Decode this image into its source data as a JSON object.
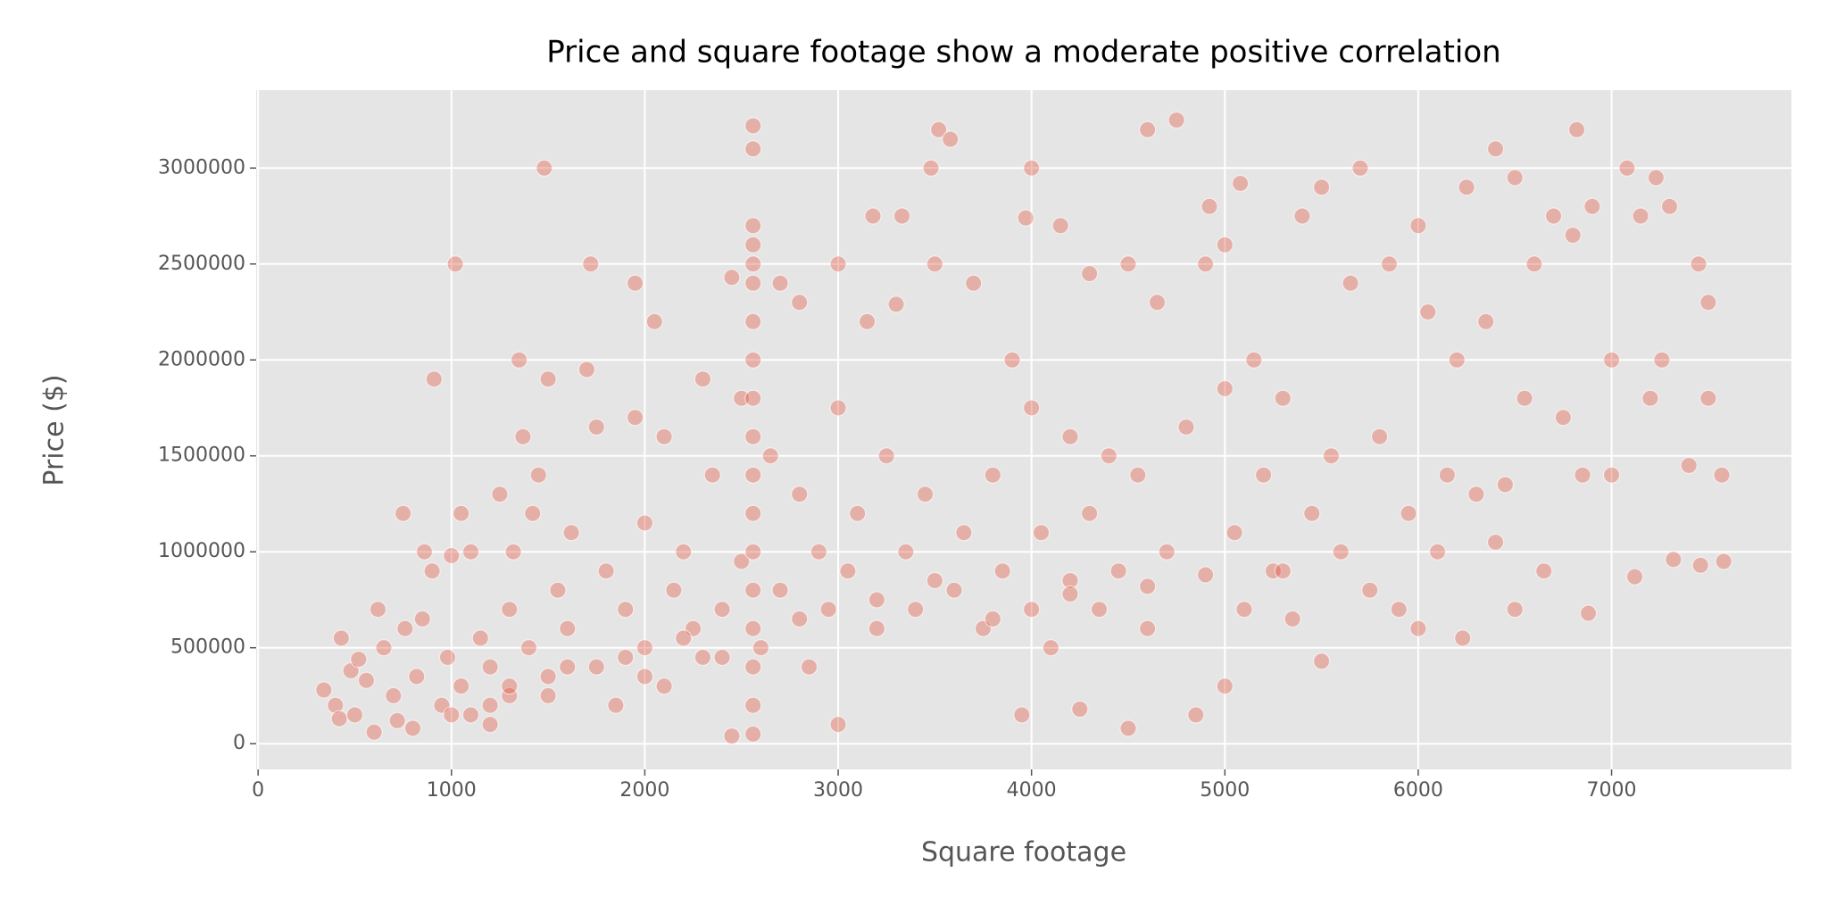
{
  "chart_data": {
    "type": "scatter",
    "title": "Price and square footage show a moderate positive correlation",
    "xlabel": "Square footage",
    "ylabel": "Price ($)",
    "color": "#E24A33",
    "grid": true,
    "xlim": [
      -10,
      7930
    ],
    "ylim": [
      -134000,
      3406000
    ],
    "xticks": [
      0,
      1000,
      2000,
      3000,
      4000,
      5000,
      6000,
      7000
    ],
    "yticks": [
      0,
      500000,
      1000000,
      1500000,
      2000000,
      2500000,
      3000000
    ],
    "x": [
      340,
      400,
      420,
      430,
      480,
      500,
      520,
      560,
      600,
      620,
      650,
      700,
      720,
      750,
      760,
      800,
      820,
      850,
      860,
      900,
      910,
      950,
      980,
      1000,
      1020,
      1050,
      1050,
      1100,
      1100,
      1150,
      1200,
      1200,
      1250,
      1300,
      1300,
      1320,
      1350,
      1370,
      1400,
      1420,
      1450,
      1480,
      1500,
      1500,
      1550,
      1600,
      1620,
      1700,
      1720,
      1750,
      1750,
      1800,
      1850,
      1900,
      1950,
      1950,
      2000,
      2000,
      2050,
      2100,
      2100,
      2150,
      2200,
      2250,
      2300,
      2300,
      2350,
      2400,
      2450,
      2450,
      2500,
      2500,
      2560,
      2560,
      2560,
      2560,
      2560,
      2560,
      2560,
      2560,
      2560,
      2560,
      2560,
      2560,
      2560,
      2560,
      2560,
      2560,
      2560,
      2560,
      2600,
      2650,
      2700,
      2700,
      2800,
      2800,
      2850,
      2900,
      2950,
      3000,
      3000,
      3000,
      3050,
      3100,
      3150,
      3180,
      3200,
      3250,
      3300,
      3330,
      3350,
      3400,
      3450,
      3480,
      3500,
      3520,
      3580,
      3600,
      3650,
      3700,
      3750,
      3800,
      3850,
      3900,
      3950,
      3970,
      4000,
      4000,
      4000,
      4050,
      4100,
      4150,
      4200,
      4200,
      4250,
      4300,
      4300,
      4350,
      4400,
      4450,
      4500,
      4500,
      4550,
      4600,
      4600,
      4650,
      4700,
      4750,
      4800,
      4850,
      4900,
      4920,
      5000,
      5000,
      5000,
      5050,
      5080,
      5100,
      5150,
      5200,
      5250,
      5300,
      5350,
      5400,
      5450,
      5500,
      5500,
      5550,
      5600,
      5650,
      5700,
      5750,
      5800,
      5850,
      5900,
      5950,
      6000,
      6000,
      6050,
      6100,
      6150,
      6200,
      6230,
      6250,
      6300,
      6350,
      6400,
      6400,
      6450,
      6500,
      6500,
      6550,
      6600,
      6650,
      6700,
      6750,
      6800,
      6820,
      6850,
      6880,
      6900,
      7000,
      7000,
      7080,
      7120,
      7150,
      7200,
      7230,
      7260,
      7300,
      7320,
      7400,
      7450,
      7460,
      7500,
      7500,
      7570,
      7580,
      3200,
      3500,
      3800,
      4200,
      4600,
      4900,
      5300,
      1300,
      1600,
      1900,
      2200,
      2800,
      1000,
      1200,
      1500,
      2000,
      2400
    ],
    "values": [
      280000,
      200000,
      130000,
      550000,
      380000,
      150000,
      440000,
      330000,
      60000,
      700000,
      500000,
      250000,
      120000,
      1200000,
      600000,
      80000,
      350000,
      650000,
      1000000,
      900000,
      1900000,
      200000,
      450000,
      980000,
      2500000,
      1200000,
      300000,
      1000000,
      150000,
      550000,
      400000,
      100000,
      1300000,
      700000,
      250000,
      1000000,
      2000000,
      1600000,
      500000,
      1200000,
      1400000,
      3000000,
      1900000,
      350000,
      800000,
      600000,
      1100000,
      1950000,
      2500000,
      1650000,
      400000,
      900000,
      200000,
      700000,
      2400000,
      1700000,
      1150000,
      500000,
      2200000,
      1600000,
      300000,
      800000,
      1000000,
      600000,
      1900000,
      450000,
      1400000,
      700000,
      2430000,
      40000,
      1800000,
      950000,
      50000,
      200000,
      400000,
      600000,
      800000,
      1000000,
      1200000,
      1400000,
      1600000,
      1800000,
      2000000,
      2200000,
      2400000,
      2500000,
      2600000,
      2700000,
      3100000,
      3220000,
      500000,
      1500000,
      2400000,
      800000,
      2300000,
      1300000,
      400000,
      1000000,
      700000,
      2500000,
      1750000,
      100000,
      900000,
      1200000,
      2200000,
      2750000,
      600000,
      1500000,
      2290000,
      2750000,
      1000000,
      700000,
      1300000,
      3000000,
      2500000,
      3200000,
      3150000,
      800000,
      1100000,
      2400000,
      600000,
      1400000,
      900000,
      2000000,
      150000,
      2740000,
      3000000,
      1750000,
      700000,
      1100000,
      500000,
      2700000,
      1600000,
      850000,
      180000,
      2450000,
      1200000,
      700000,
      1500000,
      900000,
      80000,
      2500000,
      1400000,
      3200000,
      600000,
      2300000,
      1000000,
      3250000,
      1650000,
      150000,
      2500000,
      2800000,
      2600000,
      1850000,
      300000,
      1100000,
      2920000,
      700000,
      2000000,
      1400000,
      900000,
      1800000,
      650000,
      2750000,
      1200000,
      2900000,
      430000,
      1500000,
      1000000,
      2400000,
      3000000,
      800000,
      1600000,
      2500000,
      700000,
      1200000,
      2700000,
      600000,
      2250000,
      1000000,
      1400000,
      2000000,
      550000,
      2900000,
      1300000,
      2200000,
      3100000,
      1050000,
      1350000,
      2950000,
      700000,
      1800000,
      2500000,
      900000,
      2750000,
      1700000,
      2650000,
      3200000,
      1400000,
      680000,
      2800000,
      2000000,
      1400000,
      3000000,
      870000,
      2750000,
      1800000,
      2950000,
      2000000,
      2800000,
      960000,
      1450000,
      2500000,
      930000,
      2300000,
      1800000,
      1400000,
      950000,
      750000,
      850000,
      650000,
      780000,
      820000,
      880000,
      900000,
      300000,
      400000,
      450000,
      550000,
      650000,
      150000,
      200000,
      250000,
      350000,
      450000
    ]
  }
}
